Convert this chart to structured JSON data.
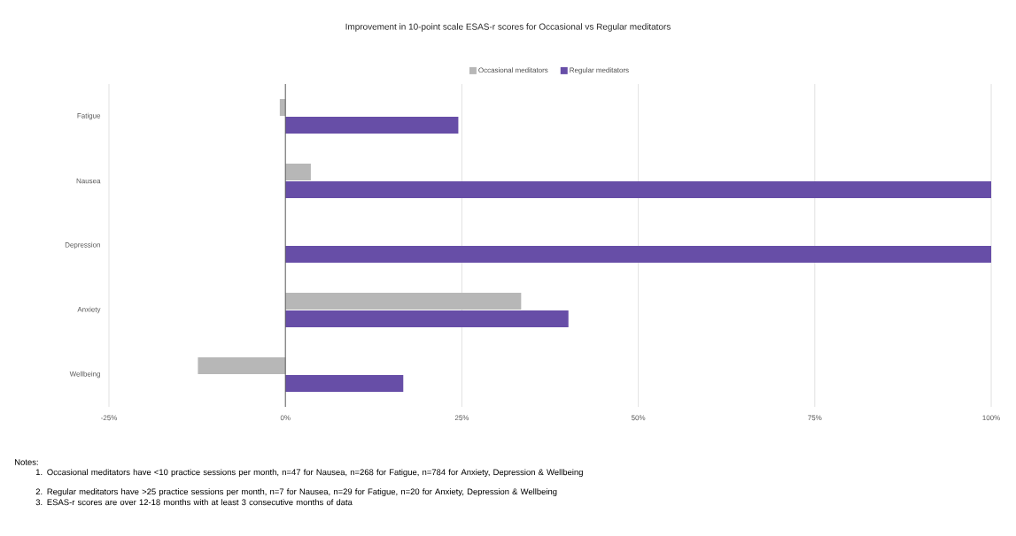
{
  "chart_data": {
    "type": "bar",
    "orientation": "horizontal",
    "title": "Improvement in 10-point scale ESAS-r scores for Occasional vs Regular meditators",
    "categories": [
      "Fatigue",
      "Nausea",
      "Depression",
      "Anxiety",
      "Wellbeing"
    ],
    "series": [
      {
        "name": "Occasional meditators",
        "color": "#b7b7b7",
        "values": [
          -0.8,
          3.6,
          0,
          33.4,
          -12.4
        ]
      },
      {
        "name": "Regular meditators",
        "color": "#674ea7",
        "values": [
          24.5,
          100,
          100,
          40.1,
          16.7
        ]
      }
    ],
    "xlim": [
      -25,
      100
    ],
    "xticks": [
      {
        "value": -25,
        "label": "-25%"
      },
      {
        "value": 0,
        "label": "0%"
      },
      {
        "value": 25,
        "label": "25%"
      },
      {
        "value": 50,
        "label": "50%"
      },
      {
        "value": 75,
        "label": "75%"
      },
      {
        "value": 100,
        "label": "100%"
      }
    ],
    "grid": "x",
    "legend": "top",
    "annotations": [
      "Notes:",
      "1. Occasional meditators have <10 practice sessions per month, n=47 for Nausea, n=268 for Fatigue, n=784 for Anxiety, Depression & Wellbeing",
      "2. Regular meditators have >25 practice sessions per month, n=7 for Nausea, n=29 for Fatigue, n=20 for Anxiety, Depression & Wellbeing",
      "3. ESAS-r scores are over 12-18 months with at least 3 consecutive months of data"
    ]
  }
}
